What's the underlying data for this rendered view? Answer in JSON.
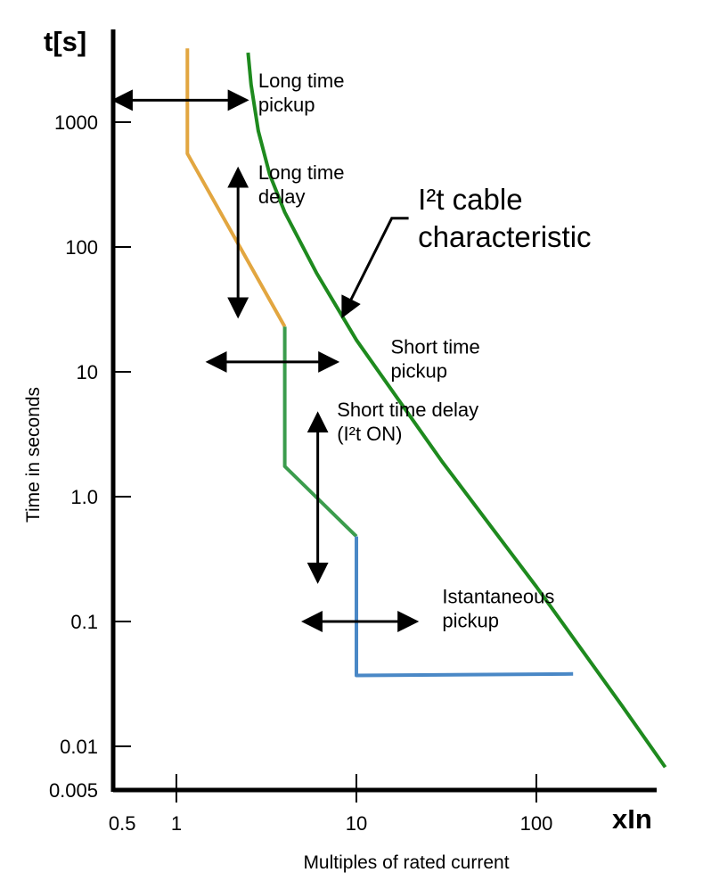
{
  "chart_data": {
    "type": "line",
    "x_scale": "log",
    "y_scale": "log",
    "xlim": [
      0.4,
      650
    ],
    "ylim": [
      0.005,
      5000
    ],
    "grid": false,
    "y_axis_title": "t[s]",
    "ylabel": "Time in seconds",
    "x_axis_title": "xIn",
    "xlabel": "Multiples of rated current",
    "x_ticks": [
      {
        "value": 0.5,
        "label": "0.5"
      },
      {
        "value": 1,
        "label": "1"
      },
      {
        "value": 10,
        "label": "10"
      },
      {
        "value": 100,
        "label": "100"
      }
    ],
    "y_ticks": [
      {
        "value": 0.005,
        "label": "0.005"
      },
      {
        "value": 0.01,
        "label": "0.01"
      },
      {
        "value": 0.1,
        "label": "0.1"
      },
      {
        "value": 1,
        "label": "1.0"
      },
      {
        "value": 10,
        "label": "10"
      },
      {
        "value": 100,
        "label": "100"
      },
      {
        "value": 1000,
        "label": "1000"
      }
    ],
    "series": [
      {
        "segment": "long-time",
        "color": "#e2a640",
        "points": [
          [
            1.15,
            3900
          ],
          [
            1.15,
            560
          ],
          [
            4.0,
            23
          ]
        ]
      },
      {
        "segment": "short-time",
        "color": "#3b9c4d",
        "points": [
          [
            4.0,
            23
          ],
          [
            4.0,
            1.75
          ],
          [
            10.0,
            0.48
          ]
        ]
      },
      {
        "segment": "instantaneous",
        "color": "#4a88c6",
        "points": [
          [
            10.0,
            0.48
          ],
          [
            10.0,
            0.037
          ],
          [
            160,
            0.038
          ]
        ]
      },
      {
        "name": "I²t cable characteristic",
        "color": "#1e8a1e",
        "points": [
          [
            2.5,
            3600
          ],
          [
            2.6,
            2000
          ],
          [
            2.85,
            850
          ],
          [
            3.3,
            380
          ],
          [
            4.0,
            190
          ],
          [
            6.0,
            62
          ],
          [
            10,
            18
          ],
          [
            30,
            1.9
          ],
          [
            100,
            0.19
          ],
          [
            300,
            0.021
          ],
          [
            520,
            0.0068
          ]
        ]
      }
    ],
    "annotations": [
      {
        "id": "long-time-pickup",
        "lines": [
          "Long time",
          "pickup"
        ],
        "arrow": "horizontal",
        "arrow_from": [
          0.45,
          1500
        ],
        "arrow_to": [
          2.45,
          1500
        ],
        "text_at": [
          2.85,
          1900
        ]
      },
      {
        "id": "long-time-delay",
        "lines": [
          "Long time",
          "delay"
        ],
        "arrow": "vertical",
        "arrow_from": [
          2.2,
          420
        ],
        "arrow_to": [
          2.2,
          28
        ],
        "text_at": [
          2.85,
          350
        ]
      },
      {
        "id": "short-time-pickup",
        "lines": [
          "Short time",
          "pickup"
        ],
        "arrow": "horizontal",
        "arrow_from": [
          1.5,
          12
        ],
        "arrow_to": [
          7.8,
          12
        ],
        "text_at": [
          15.5,
          14
        ]
      },
      {
        "id": "short-time-delay",
        "lines": [
          "Short time delay",
          "(I²t ON)"
        ],
        "arrow": "vertical",
        "arrow_from": [
          6.1,
          4.6
        ],
        "arrow_to": [
          6.1,
          0.21
        ],
        "text_at": [
          7.8,
          4.4
        ]
      },
      {
        "id": "instantaneous-pickup",
        "lines": [
          "Istantaneous",
          "pickup"
        ],
        "arrow": "horizontal",
        "arrow_from": [
          5.1,
          0.1
        ],
        "arrow_to": [
          21.5,
          0.1
        ],
        "text_at": [
          30,
          0.14
        ]
      },
      {
        "id": "cable-characteristic",
        "lines": [
          "I²t cable",
          "characteristic"
        ],
        "arrow": "diagonal",
        "arrow_from": [
          19.5,
          170
        ],
        "arrow_to": [
          8.4,
          28
        ],
        "text_at": [
          22,
          200
        ]
      }
    ]
  }
}
